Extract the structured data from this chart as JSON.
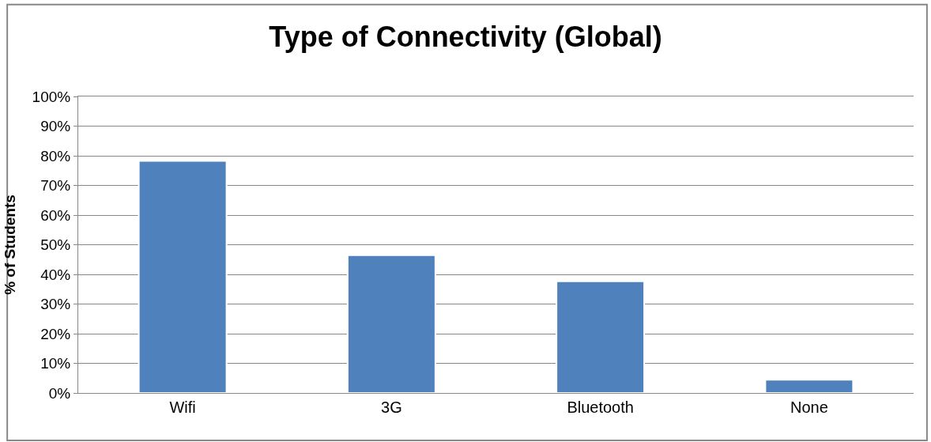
{
  "chart_data": {
    "type": "bar",
    "title": "Type of Connectivity (Global)",
    "ylabel": "% of Students",
    "categories": [
      "Wifi",
      "3G",
      "Bluetooth",
      "None"
    ],
    "values": [
      78.3,
      46.5,
      37.7,
      4.5
    ],
    "color": "#4f81bd",
    "ylim": [
      0,
      100
    ],
    "yticks": [
      {
        "value": 0,
        "label": "0%"
      },
      {
        "value": 10,
        "label": "10%"
      },
      {
        "value": 20,
        "label": "20%"
      },
      {
        "value": 30,
        "label": "30%"
      },
      {
        "value": 40,
        "label": "40%"
      },
      {
        "value": 50,
        "label": "50%"
      },
      {
        "value": 60,
        "label": "60%"
      },
      {
        "value": 70,
        "label": "70%"
      },
      {
        "value": 80,
        "label": "80%"
      },
      {
        "value": 90,
        "label": "90%"
      },
      {
        "value": 100,
        "label": "100%"
      }
    ],
    "grid": "y"
  }
}
